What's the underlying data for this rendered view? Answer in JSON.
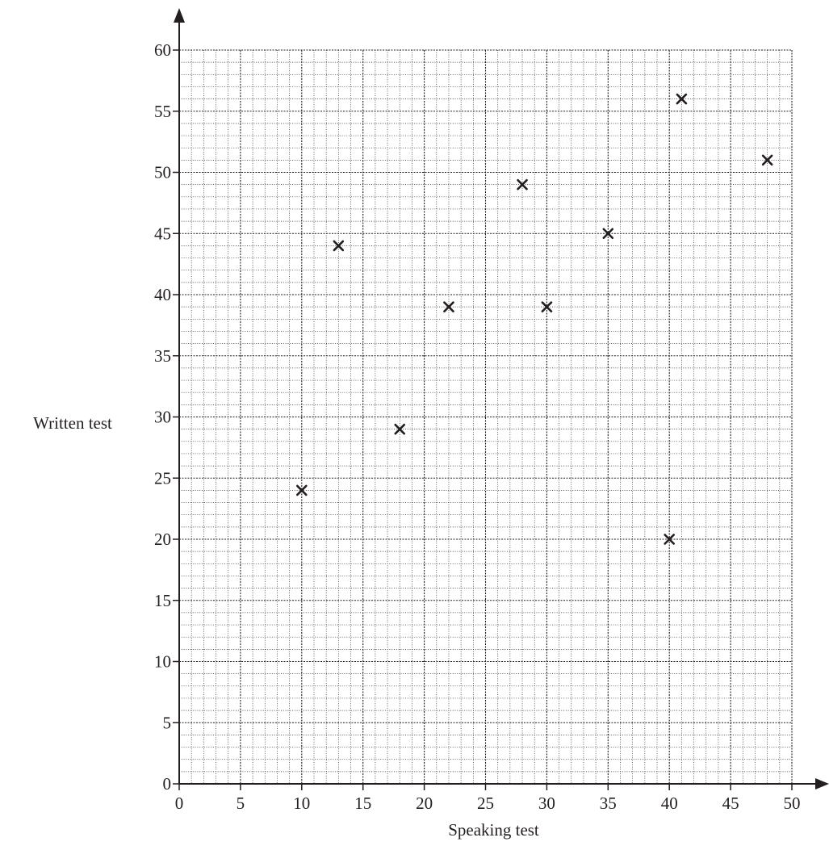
{
  "chart_data": {
    "type": "scatter",
    "title": "",
    "xlabel": "Speaking test",
    "ylabel": "Written test",
    "xlim": [
      0,
      50
    ],
    "ylim": [
      0,
      60
    ],
    "x_ticks": [
      0,
      5,
      10,
      15,
      20,
      25,
      30,
      35,
      40,
      45,
      50
    ],
    "y_ticks": [
      0,
      5,
      10,
      15,
      20,
      25,
      30,
      35,
      40,
      45,
      50,
      55,
      60
    ],
    "grid": true,
    "marker": "cross",
    "points": [
      {
        "x": 10,
        "y": 24
      },
      {
        "x": 13,
        "y": 44
      },
      {
        "x": 18,
        "y": 29
      },
      {
        "x": 22,
        "y": 39
      },
      {
        "x": 28,
        "y": 49
      },
      {
        "x": 30,
        "y": 39
      },
      {
        "x": 35,
        "y": 45
      },
      {
        "x": 40,
        "y": 20
      },
      {
        "x": 41,
        "y": 56
      },
      {
        "x": 48,
        "y": 51
      }
    ]
  }
}
